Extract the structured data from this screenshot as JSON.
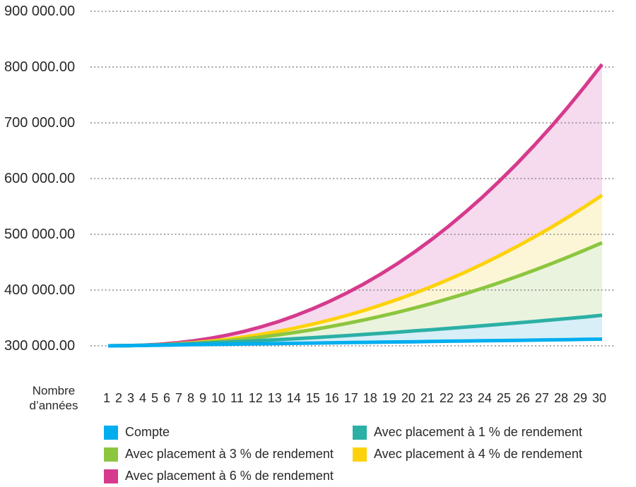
{
  "colors": {
    "background": "#FFFFFF",
    "gridline": "#8F8F8F",
    "text": "#2B2728"
  },
  "chart_data": {
    "type": "area",
    "title": "",
    "grid": "dotted-horizontal",
    "legend_position": "bottom",
    "ylim": [
      300000,
      900000
    ],
    "x_axis": {
      "title": "Nombre d’années",
      "title_line1": "Nombre",
      "title_line2": "d’années",
      "ticks": [
        "1",
        "2",
        "3",
        "4",
        "5",
        "6",
        "7",
        "8",
        "9",
        "10",
        "11",
        "12",
        "13",
        "14",
        "15",
        "16",
        "17",
        "18",
        "19",
        "20",
        "21",
        "22",
        "23",
        "24",
        "25",
        "26",
        "27",
        "28",
        "29",
        "30"
      ]
    },
    "y_axis": {
      "ticks": [
        {
          "label": "900 000.00",
          "value": 900000
        },
        {
          "label": "800 000.00",
          "value": 800000
        },
        {
          "label": "700 000.00",
          "value": 700000
        },
        {
          "label": "600 000.00",
          "value": 600000
        },
        {
          "label": "500 000.00",
          "value": 500000
        },
        {
          "label": "400 000.00",
          "value": 400000
        },
        {
          "label": "300 000.00",
          "value": 300000
        }
      ]
    },
    "series": [
      {
        "name": "Compte",
        "line_color": "#00AEEF",
        "fill_color": "#FFFFFF",
        "values": [
          300000,
          300400,
          300800,
          301200,
          301700,
          302100,
          302500,
          302900,
          303300,
          303700,
          304100,
          304600,
          305000,
          305400,
          305800,
          306200,
          306600,
          307000,
          307400,
          307900,
          308300,
          308700,
          309100,
          309500,
          309900,
          310300,
          310800,
          311200,
          311600,
          312000
        ]
      },
      {
        "name": "Avec placement à 1 % de rendement",
        "line_color": "#2BB0A5",
        "fill_color": "#D8EFF7",
        "values": [
          300000,
          300400,
          301000,
          301800,
          302800,
          303900,
          305200,
          306500,
          308000,
          309500,
          311100,
          312800,
          314600,
          316500,
          318400,
          320400,
          322500,
          324600,
          326800,
          329000,
          331400,
          333700,
          336100,
          338600,
          341100,
          343700,
          346300,
          349000,
          351800,
          355000
        ]
      },
      {
        "name": "Avec placement à 3 % de rendement",
        "line_color": "#8CC63F",
        "fill_color": "#EAF3DE",
        "values": [
          300000,
          300200,
          300700,
          301600,
          302900,
          304600,
          306800,
          309300,
          312400,
          315800,
          319800,
          324200,
          329000,
          334300,
          340100,
          346300,
          353100,
          360300,
          368000,
          376100,
          384800,
          393900,
          403600,
          413700,
          424300,
          435500,
          447100,
          459200,
          471900,
          485000
        ]
      },
      {
        "name": "Avec placement à 4 % de rendement",
        "line_color": "#FDD20A",
        "fill_color": "#FCF6D7",
        "values": [
          300000,
          300200,
          300800,
          301800,
          303500,
          305600,
          308400,
          311800,
          315900,
          320600,
          326000,
          332000,
          338800,
          346200,
          354400,
          363300,
          373000,
          383400,
          394600,
          406500,
          419200,
          432700,
          447000,
          462100,
          478100,
          494800,
          512300,
          530700,
          549900,
          570000
        ]
      },
      {
        "name": "Avec placement à 6 % de rendement",
        "line_color": "#D63A8D",
        "fill_color": "#F6DAED",
        "values": [
          300000,
          300200,
          301100,
          302700,
          305300,
          308900,
          313500,
          319200,
          326100,
          334200,
          343600,
          354300,
          366300,
          379800,
          394600,
          410900,
          428600,
          447800,
          468600,
          490900,
          514800,
          540400,
          567500,
          596300,
          626700,
          659000,
          692800,
          728400,
          765800,
          805000
        ]
      }
    ]
  }
}
